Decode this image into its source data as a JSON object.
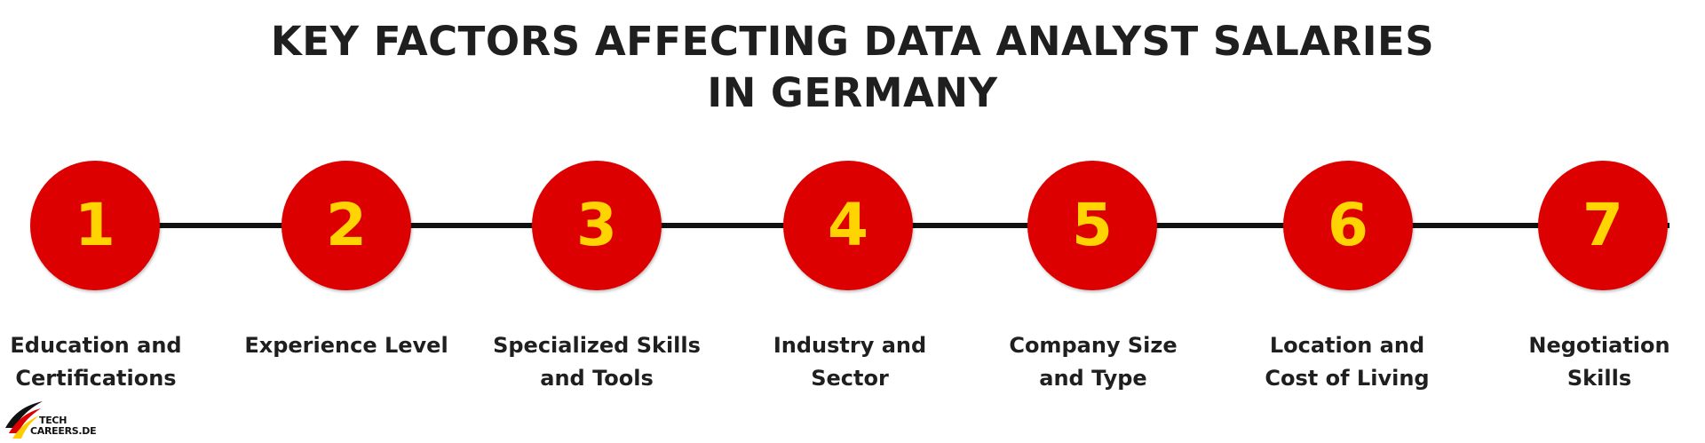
{
  "title": {
    "line1": "KEY FACTORS AFFECTING DATA ANALYST SALARIES",
    "line2": "IN GERMANY"
  },
  "colors": {
    "circle": "#dd0000",
    "number": "#ffd400",
    "connector": "#111111",
    "text": "#1f1f1f"
  },
  "steps": [
    {
      "number": "1",
      "label_lines": [
        "Education and",
        "Certifications"
      ]
    },
    {
      "number": "2",
      "label_lines": [
        "Experience Level"
      ]
    },
    {
      "number": "3",
      "label_lines": [
        "Specialized Skills",
        "and Tools"
      ]
    },
    {
      "number": "4",
      "label_lines": [
        "Industry and",
        "Sector"
      ]
    },
    {
      "number": "5",
      "label_lines": [
        "Company Size",
        "and Type"
      ]
    },
    {
      "number": "6",
      "label_lines": [
        "Location and",
        "Cost of Living"
      ]
    },
    {
      "number": "7",
      "label_lines": [
        "Negotiation",
        "Skills"
      ]
    }
  ],
  "logo": {
    "line1": "TECH",
    "line2": "CAREERS.DE"
  }
}
